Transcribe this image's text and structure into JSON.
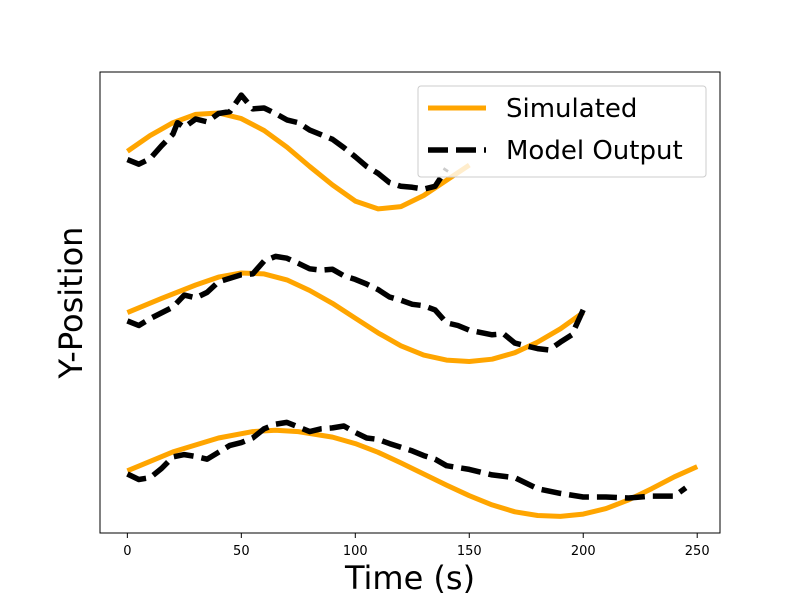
{
  "chart_data": {
    "type": "line",
    "xlabel": "Time (s)",
    "ylabel": "Y-Position",
    "xlim": [
      -12,
      260
    ],
    "ylim": [
      0,
      100
    ],
    "x_ticks": [
      0,
      50,
      100,
      150,
      200,
      250
    ],
    "y_ticks_shown": false,
    "grid": false,
    "legend": {
      "placement": "top-right",
      "entries": [
        {
          "label": "Simulated",
          "color": "#FFA500",
          "style": "solid"
        },
        {
          "label": "Model Output",
          "color": "#000000",
          "style": "dashed"
        }
      ]
    },
    "series": [
      {
        "name": "Simulated",
        "group": 1,
        "color": "#FFA500",
        "style": "solid",
        "points": [
          [
            0,
            82.8
          ],
          [
            10,
            86.2
          ],
          [
            20,
            89.0
          ],
          [
            30,
            90.8
          ],
          [
            40,
            91.1
          ],
          [
            50,
            89.9
          ],
          [
            60,
            87.3
          ],
          [
            70,
            83.7
          ],
          [
            80,
            79.5
          ],
          [
            90,
            75.5
          ],
          [
            100,
            72.0
          ],
          [
            110,
            70.3
          ],
          [
            120,
            70.8
          ],
          [
            130,
            73.2
          ],
          [
            140,
            76.5
          ],
          [
            150,
            79.8
          ]
        ]
      },
      {
        "name": "Model Output",
        "group": 1,
        "color": "#000000",
        "style": "dashed",
        "points": [
          [
            0,
            81.0
          ],
          [
            5,
            80.0
          ],
          [
            10,
            81.2
          ],
          [
            15,
            84.0
          ],
          [
            20,
            86.5
          ],
          [
            22,
            89.0
          ],
          [
            25,
            88.0
          ],
          [
            30,
            89.8
          ],
          [
            35,
            89.2
          ],
          [
            40,
            91.0
          ],
          [
            45,
            91.4
          ],
          [
            50,
            95.0
          ],
          [
            55,
            92.0
          ],
          [
            60,
            92.2
          ],
          [
            65,
            91.0
          ],
          [
            70,
            89.6
          ],
          [
            75,
            89.0
          ],
          [
            80,
            87.4
          ],
          [
            85,
            86.4
          ],
          [
            90,
            85.4
          ],
          [
            95,
            83.6
          ],
          [
            100,
            81.6
          ],
          [
            105,
            79.5
          ],
          [
            110,
            78.0
          ],
          [
            115,
            76.0
          ],
          [
            120,
            75.2
          ],
          [
            125,
            75.0
          ],
          [
            130,
            74.6
          ],
          [
            135,
            75.2
          ],
          [
            140,
            79.0
          ]
        ]
      },
      {
        "name": "Simulated",
        "group": 2,
        "color": "#FFA500",
        "style": "solid",
        "points": [
          [
            0,
            47.8
          ],
          [
            15,
            50.9
          ],
          [
            30,
            53.8
          ],
          [
            40,
            55.5
          ],
          [
            50,
            56.4
          ],
          [
            60,
            56.2
          ],
          [
            70,
            54.9
          ],
          [
            80,
            52.6
          ],
          [
            90,
            49.8
          ],
          [
            100,
            46.6
          ],
          [
            110,
            43.4
          ],
          [
            120,
            40.6
          ],
          [
            130,
            38.6
          ],
          [
            140,
            37.5
          ],
          [
            150,
            37.2
          ],
          [
            160,
            37.7
          ],
          [
            170,
            39.1
          ],
          [
            180,
            41.4
          ],
          [
            190,
            44.3
          ],
          [
            200,
            47.8
          ]
        ]
      },
      {
        "name": "Model Output",
        "group": 2,
        "color": "#000000",
        "style": "dashed",
        "points": [
          [
            0,
            46.0
          ],
          [
            5,
            45.0
          ],
          [
            10,
            46.5
          ],
          [
            20,
            49.0
          ],
          [
            25,
            51.6
          ],
          [
            30,
            51.0
          ],
          [
            35,
            52.2
          ],
          [
            40,
            54.5
          ],
          [
            50,
            56.0
          ],
          [
            55,
            56.2
          ],
          [
            60,
            59.0
          ],
          [
            65,
            60.0
          ],
          [
            70,
            59.6
          ],
          [
            75,
            58.5
          ],
          [
            80,
            57.3
          ],
          [
            85,
            57.0
          ],
          [
            90,
            57.2
          ],
          [
            95,
            55.8
          ],
          [
            100,
            55.0
          ],
          [
            105,
            54.0
          ],
          [
            110,
            52.8
          ],
          [
            115,
            51.2
          ],
          [
            120,
            50.5
          ],
          [
            125,
            49.6
          ],
          [
            130,
            49.3
          ],
          [
            135,
            48.4
          ],
          [
            140,
            45.6
          ],
          [
            145,
            45.0
          ],
          [
            150,
            44.0
          ],
          [
            160,
            43.0
          ],
          [
            165,
            43.2
          ],
          [
            170,
            41.2
          ],
          [
            180,
            40.0
          ],
          [
            185,
            39.7
          ],
          [
            190,
            41.4
          ],
          [
            195,
            43.0
          ],
          [
            200,
            48.4
          ]
        ]
      },
      {
        "name": "Simulated",
        "group": 3,
        "color": "#FFA500",
        "style": "solid",
        "points": [
          [
            0,
            13.5
          ],
          [
            20,
            17.6
          ],
          [
            40,
            20.6
          ],
          [
            55,
            22.0
          ],
          [
            65,
            22.3
          ],
          [
            75,
            22.0
          ],
          [
            90,
            20.8
          ],
          [
            100,
            19.4
          ],
          [
            110,
            17.5
          ],
          [
            120,
            15.2
          ],
          [
            130,
            12.8
          ],
          [
            140,
            10.4
          ],
          [
            150,
            8.1
          ],
          [
            160,
            6.1
          ],
          [
            170,
            4.6
          ],
          [
            180,
            3.8
          ],
          [
            190,
            3.6
          ],
          [
            200,
            4.1
          ],
          [
            210,
            5.3
          ],
          [
            220,
            7.2
          ],
          [
            230,
            9.6
          ],
          [
            240,
            12.2
          ],
          [
            250,
            14.4
          ]
        ]
      },
      {
        "name": "Model Output",
        "group": 3,
        "color": "#000000",
        "style": "dashed",
        "points": [
          [
            0,
            12.8
          ],
          [
            5,
            11.6
          ],
          [
            10,
            12.0
          ],
          [
            15,
            14.0
          ],
          [
            20,
            16.5
          ],
          [
            25,
            17.0
          ],
          [
            30,
            16.6
          ],
          [
            35,
            16.0
          ],
          [
            40,
            17.5
          ],
          [
            45,
            19.0
          ],
          [
            50,
            19.6
          ],
          [
            55,
            20.6
          ],
          [
            60,
            22.6
          ],
          [
            65,
            23.6
          ],
          [
            70,
            24.0
          ],
          [
            75,
            23.0
          ],
          [
            80,
            22.0
          ],
          [
            85,
            22.6
          ],
          [
            90,
            22.8
          ],
          [
            95,
            23.2
          ],
          [
            100,
            21.8
          ],
          [
            105,
            20.6
          ],
          [
            110,
            20.3
          ],
          [
            115,
            19.4
          ],
          [
            120,
            18.6
          ],
          [
            125,
            17.8
          ],
          [
            130,
            16.8
          ],
          [
            135,
            16.0
          ],
          [
            140,
            14.6
          ],
          [
            150,
            13.8
          ],
          [
            160,
            12.6
          ],
          [
            170,
            12.0
          ],
          [
            180,
            9.6
          ],
          [
            190,
            8.6
          ],
          [
            200,
            7.8
          ],
          [
            210,
            7.8
          ],
          [
            220,
            7.6
          ],
          [
            230,
            8.0
          ],
          [
            240,
            8.0
          ],
          [
            245,
            9.8
          ]
        ]
      }
    ]
  }
}
